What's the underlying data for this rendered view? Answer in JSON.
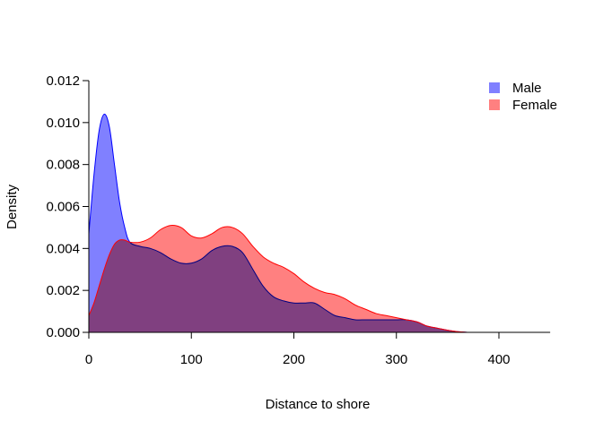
{
  "chart_data": {
    "type": "area",
    "title": "",
    "xlabel": "Distance to shore",
    "ylabel": "Density",
    "xlim": [
      0,
      450
    ],
    "ylim": [
      0,
      0.012
    ],
    "x_ticks": [
      0,
      100,
      200,
      300,
      400
    ],
    "x_tick_labels": [
      "0",
      "100",
      "200",
      "300",
      "400"
    ],
    "y_ticks": [
      0,
      0.002,
      0.004,
      0.006,
      0.008,
      0.01,
      0.012
    ],
    "y_tick_labels": [
      "0.000",
      "0.002",
      "0.004",
      "0.006",
      "0.008",
      "0.010",
      "0.012"
    ],
    "legend_position": "top-right",
    "grid": false,
    "series": [
      {
        "name": "Male",
        "fill_color": "#8080ff",
        "line_color": "#0000ff",
        "x": [
          0,
          5,
          10,
          15,
          20,
          25,
          30,
          35,
          40,
          50,
          60,
          70,
          80,
          90,
          100,
          110,
          120,
          130,
          140,
          150,
          160,
          170,
          180,
          190,
          200,
          210,
          220,
          230,
          240,
          250,
          260,
          270,
          280,
          290,
          300,
          310,
          320,
          330,
          340,
          350,
          360,
          370
        ],
        "y": [
          0.0047,
          0.0075,
          0.0096,
          0.0104,
          0.0098,
          0.008,
          0.0062,
          0.005,
          0.0043,
          0.0041,
          0.004,
          0.0038,
          0.0035,
          0.0033,
          0.0033,
          0.0035,
          0.0039,
          0.0041,
          0.0041,
          0.0038,
          0.003,
          0.0022,
          0.0017,
          0.0015,
          0.0014,
          0.0014,
          0.0014,
          0.0011,
          0.0008,
          0.0007,
          0.0006,
          0.0006,
          0.0006,
          0.0006,
          0.0006,
          0.0006,
          0.0005,
          0.0003,
          0.0002,
          0.0001,
          3e-05,
          0.0
        ]
      },
      {
        "name": "Female",
        "fill_color": "#ff8080",
        "line_color": "#ff0000",
        "x": [
          0,
          5,
          10,
          15,
          20,
          25,
          30,
          35,
          40,
          50,
          60,
          70,
          80,
          90,
          100,
          110,
          120,
          130,
          140,
          150,
          160,
          170,
          180,
          190,
          200,
          210,
          220,
          230,
          240,
          250,
          260,
          270,
          280,
          290,
          300,
          310,
          320,
          330,
          340,
          350,
          360,
          370
        ],
        "y": [
          0.0008,
          0.0014,
          0.0022,
          0.003,
          0.0037,
          0.0042,
          0.0044,
          0.0044,
          0.0043,
          0.0043,
          0.0045,
          0.0049,
          0.0051,
          0.005,
          0.0046,
          0.0045,
          0.0047,
          0.005,
          0.005,
          0.0047,
          0.0041,
          0.0036,
          0.0033,
          0.0031,
          0.0028,
          0.0024,
          0.0021,
          0.0019,
          0.0018,
          0.0016,
          0.0013,
          0.0011,
          0.0009,
          0.0008,
          0.0007,
          0.0006,
          0.0005,
          0.0003,
          0.0002,
          0.0001,
          3e-05,
          0.0
        ]
      }
    ]
  }
}
